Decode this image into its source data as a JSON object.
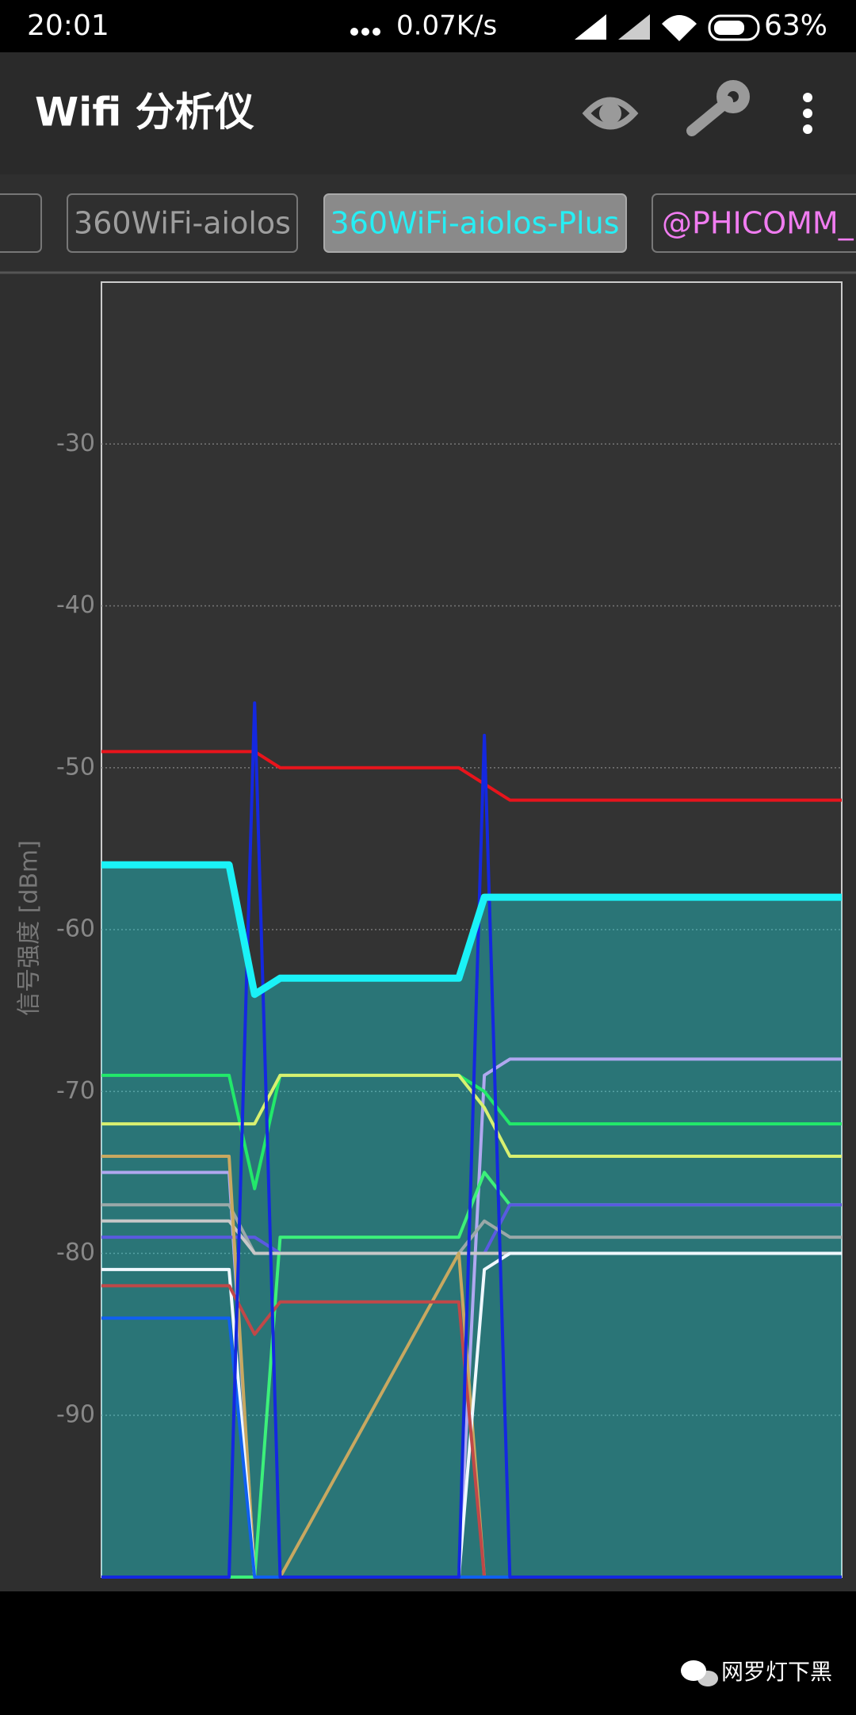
{
  "status_bar": {
    "time": "20:01",
    "speed": "0.07K/s",
    "battery": "63%"
  },
  "app_bar": {
    "title": "Wifi 分析仪"
  },
  "tabs": [
    "360WiFi-aiolos",
    "360WiFi-aiolos-Plus",
    "@PHICOMM_"
  ],
  "watermark": "网罗灯下黑",
  "chart_data": {
    "type": "line",
    "y_label": "信号强度 [dBm]",
    "x": [
      0,
      5,
      6,
      7,
      14,
      15,
      16,
      29
    ],
    "xlim": [
      0,
      29
    ],
    "ylim": [
      -100,
      -20
    ],
    "yticks": [
      -30,
      -40,
      -50,
      -60,
      -70,
      -80,
      -90
    ],
    "grid": true,
    "series": [
      {
        "color": "#e8141c",
        "values": [
          -49,
          -49,
          -49,
          -50,
          -50,
          -51,
          -52,
          -52
        ]
      },
      {
        "color": "#1af2f7",
        "fill": true,
        "values": [
          -56,
          -56,
          -64,
          -63,
          -63,
          -58,
          -58,
          -58
        ]
      },
      {
        "color": "#b0a8f0",
        "values": [
          -75,
          -75,
          -100,
          -100,
          -100,
          -69,
          -68,
          -68
        ]
      },
      {
        "color": "#22e86a",
        "values": [
          -69,
          -69,
          -76,
          -69,
          -69,
          -70,
          -72,
          -72
        ]
      },
      {
        "color": "#d8f070",
        "values": [
          -72,
          -72,
          -72,
          -69,
          -69,
          -71,
          -74,
          -74
        ]
      },
      {
        "color": "#3cf07a",
        "values": [
          -100,
          -100,
          -100,
          -79,
          -79,
          -75,
          -77,
          -77
        ]
      },
      {
        "color": "#5a5ae0",
        "values": [
          -79,
          -79,
          -79,
          -80,
          -80,
          -80,
          -77,
          -77
        ]
      },
      {
        "color": "#9aa8a8",
        "values": [
          -77,
          -77,
          -80,
          -80,
          -80,
          -78,
          -79,
          -79
        ]
      },
      {
        "color": "#c8c8c8",
        "values": [
          -78,
          -78,
          -80,
          -80,
          -80,
          -80,
          -80,
          -80
        ]
      },
      {
        "color": "#c8a860",
        "values": [
          -74,
          -74,
          -100,
          -100,
          -80,
          -100,
          -100,
          -100
        ]
      },
      {
        "color": "#f0f8ff",
        "values": [
          -81,
          -81,
          -100,
          -100,
          -100,
          -81,
          -80,
          -80
        ]
      },
      {
        "color": "#c04848",
        "values": [
          -82,
          -82,
          -85,
          -83,
          -83,
          -100,
          -100,
          -100
        ]
      },
      {
        "color": "#1060f0",
        "values": [
          -84,
          -84,
          -100,
          -100,
          -100,
          -100,
          -100,
          -100
        ]
      },
      {
        "color": "#1428e0",
        "values": [
          -100,
          -100,
          -46,
          -100,
          -100,
          -48,
          -100,
          -100
        ]
      }
    ]
  }
}
